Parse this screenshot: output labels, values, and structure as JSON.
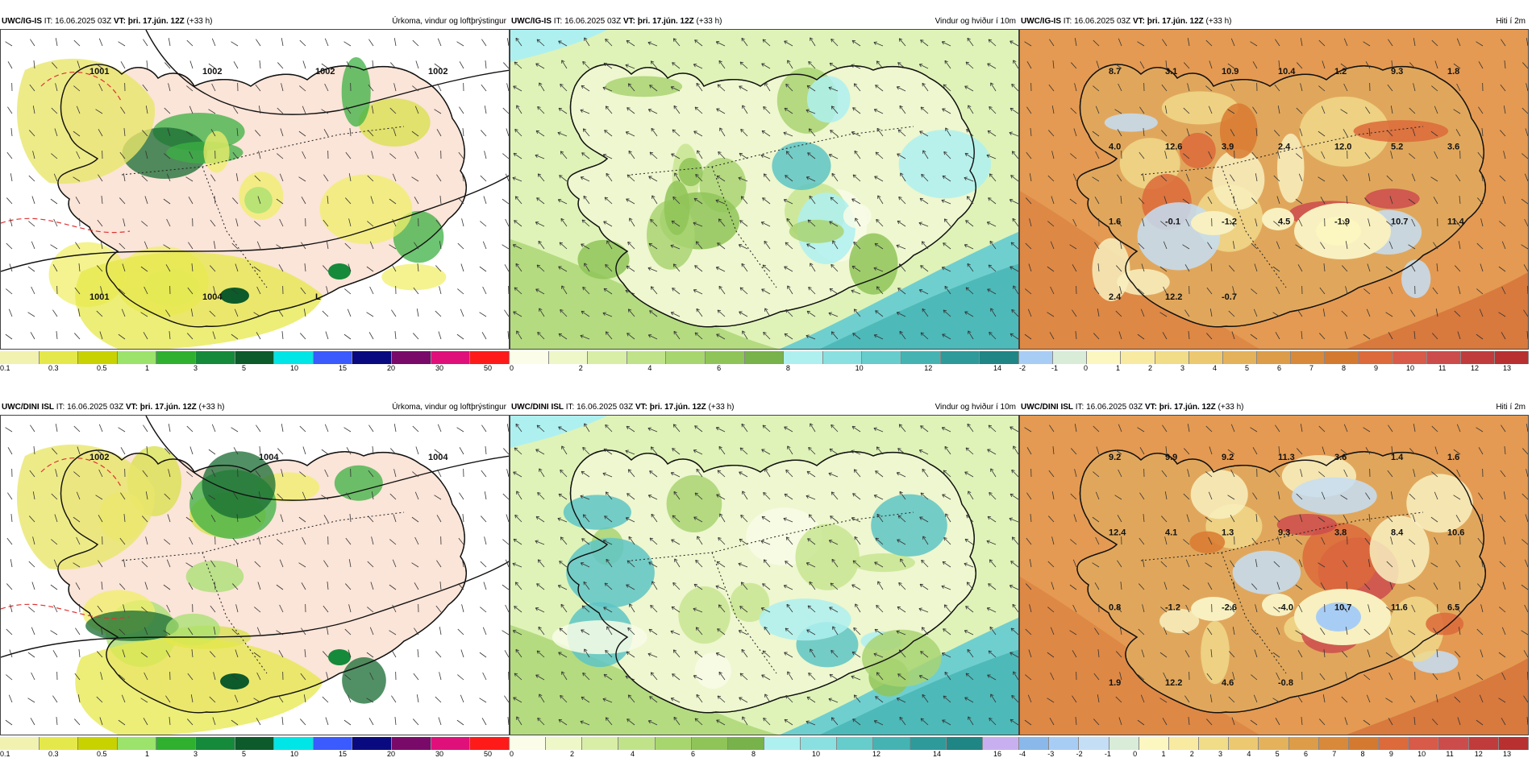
{
  "panels": [
    {
      "id": "p1",
      "model": "UWC/IG-IS",
      "it": " IT: 16.06.2025 03Z ",
      "vt_label": "VT:",
      "vt": " þri. 17.jún. 12Z",
      "lead": " (+33 h)",
      "title": "Úrkoma, vindur og loftþrýstingur",
      "legend_colors": [
        "#f2f2b0",
        "#e5e84a",
        "#c8d200",
        "#9be36a",
        "#2fb02f",
        "#158a3a",
        "#0d5a2a",
        "#00e5e5",
        "#3b5bff",
        "#0a0a80",
        "#7a0a6a",
        "#e0107a",
        "#ff1a1a"
      ],
      "ticks": [
        "0.1",
        "0.3",
        "0.5",
        "1",
        "3",
        "5",
        "10",
        "15",
        "20",
        "30",
        "50"
      ],
      "labels": [
        "1001",
        "1002",
        "1002",
        "1002",
        "1001",
        "1004",
        "L"
      ]
    },
    {
      "id": "p2",
      "model": "UWC/IG-IS",
      "it": " IT: 16.06.2025 03Z ",
      "vt_label": "VT:",
      "vt": " þri. 17.jún. 12Z",
      "lead": " (+33 h)",
      "title": "Vindur og hviður í 10m",
      "legend_colors": [
        "#fbfde8",
        "#eef7c8",
        "#d8eea6",
        "#c0e38a",
        "#a8d66e",
        "#8fc458",
        "#78b24a",
        "#aef0f0",
        "#8ae0e0",
        "#66cccc",
        "#46b3b3",
        "#2e9a9a",
        "#1f8585"
      ],
      "ticks": [
        "0",
        "2",
        "4",
        "6",
        "8",
        "10",
        "12",
        "14"
      ],
      "labels": []
    },
    {
      "id": "p3",
      "model": "UWC/IG-IS",
      "it": " IT: 16.06.2025 03Z ",
      "vt_label": "VT:",
      "vt": " þri. 17.jún. 12Z",
      "lead": " (+33 h)",
      "title": "Hiti í 2m",
      "legend_colors": [
        "#a8cdf5",
        "#d8ecd8",
        "#fcf6c0",
        "#f8eaa0",
        "#f1dc88",
        "#ecc870",
        "#e4b25a",
        "#dc9c48",
        "#d8893a",
        "#d47a30",
        "#dc6a3a",
        "#d85a48",
        "#cc4c4c",
        "#c03c3c",
        "#b83030"
      ],
      "ticks": [
        "-2",
        "-1",
        "0",
        "1",
        "2",
        "3",
        "4",
        "5",
        "6",
        "7",
        "8",
        "9",
        "10",
        "11",
        "12",
        "13"
      ],
      "labels": [
        "8.7",
        "3.1",
        "10.9",
        "10.4",
        "1.2",
        "9.3",
        "1.8",
        "4.0",
        "12.6",
        "3.9",
        "2.4",
        "12.0",
        "5.2",
        "3.6",
        "1.6",
        "-0.1",
        "-1.2",
        "4.5",
        "-1.9",
        "10.7",
        "11.4",
        "2.4",
        "12.2",
        "-0.7"
      ]
    },
    {
      "id": "p4",
      "model": "UWC/DINI ISL",
      "it": " IT: 16.06.2025 03Z ",
      "vt_label": "VT:",
      "vt": " þri. 17.jún. 12Z",
      "lead": " (+33 h)",
      "title": "Úrkoma, vindur og loftþrýstingur",
      "legend_colors": [
        "#f2f2b0",
        "#e5e84a",
        "#c8d200",
        "#9be36a",
        "#2fb02f",
        "#158a3a",
        "#0d5a2a",
        "#00e5e5",
        "#3b5bff",
        "#0a0a80",
        "#7a0a6a",
        "#e0107a",
        "#ff1a1a"
      ],
      "ticks": [
        "0.1",
        "0.3",
        "0.5",
        "1",
        "3",
        "5",
        "10",
        "15",
        "20",
        "30",
        "50"
      ],
      "labels": [
        "1002",
        "1004",
        "1004"
      ]
    },
    {
      "id": "p5",
      "model": "UWC/DINI ISL",
      "it": " IT: 16.06.2025 03Z ",
      "vt_label": "VT:",
      "vt": " þri. 17.jún. 12Z",
      "lead": " (+33 h)",
      "title": "Vindur og hviður í 10m",
      "legend_colors": [
        "#fbfde8",
        "#eef7c8",
        "#d8eea6",
        "#c0e38a",
        "#a8d66e",
        "#8fc458",
        "#78b24a",
        "#aef0f0",
        "#8ae0e0",
        "#66cccc",
        "#46b3b3",
        "#2e9a9a",
        "#1f8585",
        "#c8b0f0"
      ],
      "ticks": [
        "0",
        "2",
        "4",
        "6",
        "8",
        "10",
        "12",
        "14",
        "16"
      ],
      "labels": []
    },
    {
      "id": "p6",
      "model": "UWC/DINI ISL",
      "it": " IT: 16.06.2025 03Z ",
      "vt_label": "VT:",
      "vt": " þri. 17.jún. 12Z",
      "lead": " (+33 h)",
      "title": "Hiti í 2m",
      "legend_colors": [
        "#8ab8ea",
        "#a8cdf5",
        "#c4def5",
        "#d8ecd8",
        "#fcf6c0",
        "#f8eaa0",
        "#f1dc88",
        "#ecc870",
        "#e4b25a",
        "#dc9c48",
        "#d8893a",
        "#d47a30",
        "#dc6a3a",
        "#d85a48",
        "#cc4c4c",
        "#c03c3c",
        "#b83030"
      ],
      "ticks": [
        "-4",
        "-3",
        "-2",
        "-1",
        "0",
        "1",
        "2",
        "3",
        "4",
        "5",
        "6",
        "7",
        "8",
        "9",
        "10",
        "11",
        "12",
        "13"
      ],
      "labels": [
        "9.2",
        "9.9",
        "9.2",
        "11.3",
        "3.6",
        "1.4",
        "1.6",
        "12.4",
        "4.1",
        "1.3",
        "9.3",
        "3.8",
        "8.4",
        "10.6",
        "0.8",
        "-1.2",
        "-2.6",
        "-4.0",
        "10.7",
        "11.6",
        "6.5",
        "1.9",
        "12.2",
        "4.6",
        "-0.8"
      ]
    }
  ]
}
